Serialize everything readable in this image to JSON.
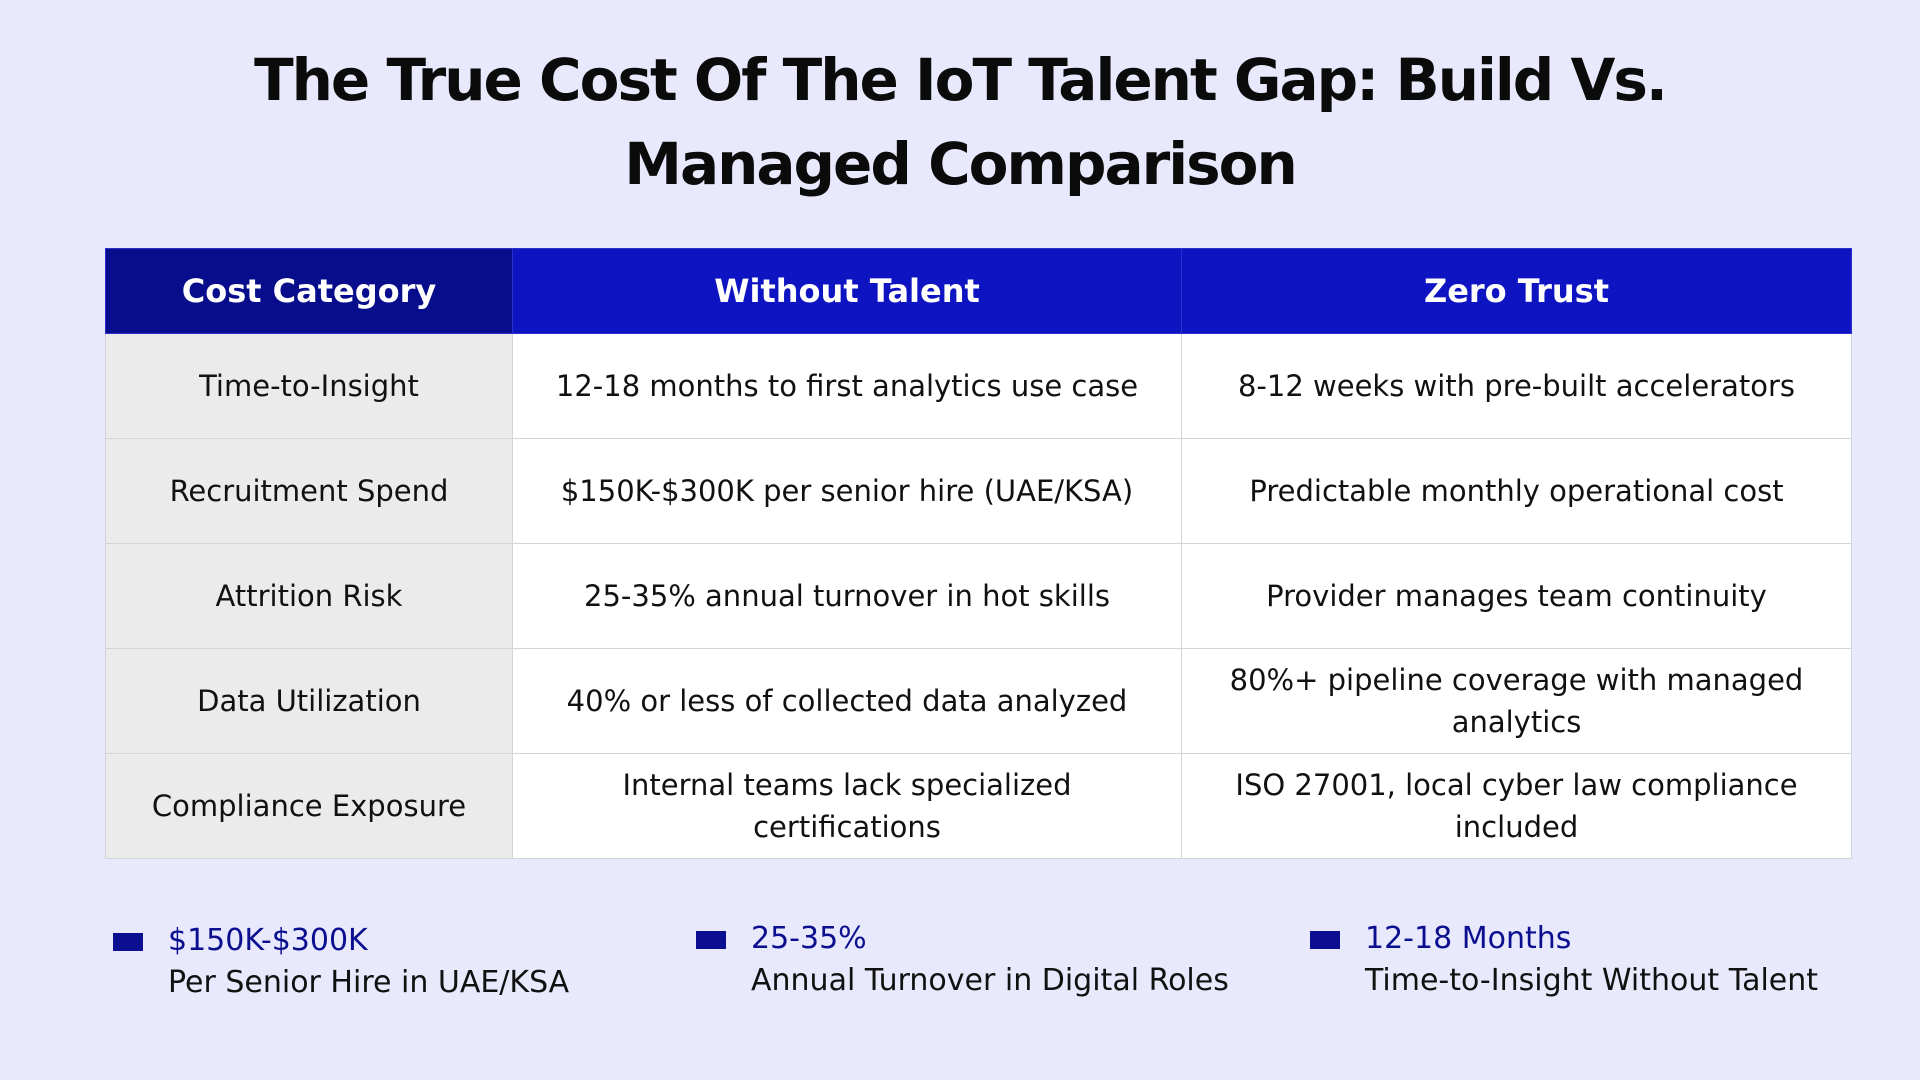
{
  "title": "The True Cost Of The IoT Talent Gap: Build Vs. Managed Comparison",
  "table": {
    "headers": [
      "Cost Category",
      "Without Talent",
      "Zero Trust"
    ],
    "rows": [
      [
        "Time-to-Insight",
        "12-18 months to first analytics use case",
        "8-12 weeks with pre-built accelerators"
      ],
      [
        "Recruitment Spend",
        "$150K-$300K per senior hire (UAE/KSA)",
        "Predictable monthly operational cost"
      ],
      [
        "Attrition Risk",
        "25-35% annual turnover in hot skills",
        "Provider manages team continuity"
      ],
      [
        "Data Utilization",
        "40% or less of collected data analyzed",
        "80%+ pipeline coverage with managed analytics"
      ],
      [
        "Compliance Exposure",
        "Internal teams lack specialized certifications",
        "ISO 27001, local cyber law compliance included"
      ]
    ]
  },
  "stats": [
    {
      "value": "$150K-$300K",
      "label": "Per Senior Hire in UAE/KSA"
    },
    {
      "value": "25-35%",
      "label": "Annual Turnover in Digital Roles"
    },
    {
      "value": "12-18 Months",
      "label": "Time-to-Insight Without Talent"
    }
  ],
  "colors": {
    "background": "#e8e9fc",
    "header_category": "#080d8c",
    "header": "#0e14c2",
    "category_cell": "#ebebeb",
    "accent": "#0b0f8f"
  }
}
